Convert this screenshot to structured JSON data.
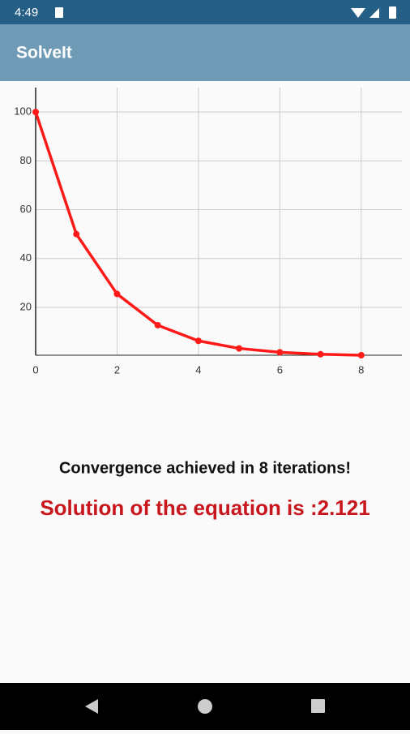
{
  "status_bar": {
    "time": "4:49"
  },
  "app_bar": {
    "title": "SolveIt"
  },
  "chart_data": {
    "type": "line",
    "x": [
      0,
      1,
      2,
      3,
      4,
      5,
      6,
      7,
      8
    ],
    "series": [
      {
        "color": "#ff1a1a",
        "values": [
          100,
          50,
          25.5,
          12.7,
          6.3,
          3.2,
          1.6,
          0.8,
          0.4
        ]
      }
    ],
    "xlim": [
      0,
      9
    ],
    "ylim": [
      0.4,
      110
    ],
    "xticks": [
      0,
      2,
      4,
      6,
      8
    ],
    "yticks": [
      20,
      40,
      60,
      80,
      100
    ],
    "grid": true
  },
  "messages": {
    "convergence": "Convergence achieved in 8 iterations!",
    "solution": "Solution of the equation is :2.121"
  }
}
